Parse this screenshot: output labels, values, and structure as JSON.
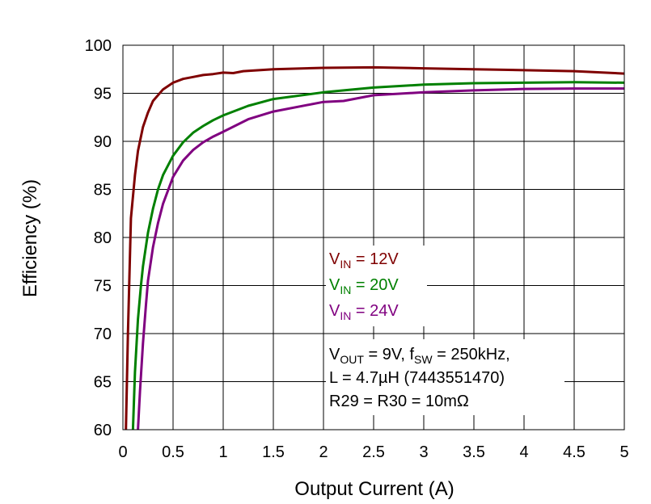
{
  "chart_data": {
    "type": "line",
    "xlabel": "Output Current (A)",
    "ylabel": "Efficiency (%)",
    "xlim": [
      0,
      5
    ],
    "ylim": [
      60,
      100
    ],
    "xticks": [
      "0",
      "0.5",
      "1",
      "1.5",
      "2",
      "2.5",
      "3",
      "3.5",
      "4",
      "4.5",
      "5"
    ],
    "yticks": [
      "60",
      "65",
      "70",
      "75",
      "80",
      "85",
      "90",
      "95",
      "100"
    ],
    "grid": true,
    "legend_position": "center-right",
    "series": [
      {
        "name_main": "V",
        "name_sub": "IN",
        "name_rest": " = 12V",
        "color": "#7f0000",
        "x": [
          0.03,
          0.05,
          0.08,
          0.12,
          0.15,
          0.2,
          0.25,
          0.3,
          0.4,
          0.5,
          0.6,
          0.7,
          0.8,
          0.9,
          1.0,
          1.1,
          1.2,
          1.5,
          2.0,
          2.5,
          3.0,
          3.5,
          4.0,
          4.5,
          5.0
        ],
        "y": [
          60,
          70,
          82,
          86.5,
          89,
          91.5,
          93,
          94.2,
          95.4,
          96.1,
          96.5,
          96.7,
          96.9,
          97.0,
          97.15,
          97.1,
          97.3,
          97.5,
          97.65,
          97.7,
          97.6,
          97.5,
          97.4,
          97.3,
          97.05
        ]
      },
      {
        "name_main": "V",
        "name_sub": "IN",
        "name_rest": " = 20V",
        "color": "#008000",
        "x": [
          0.1,
          0.12,
          0.15,
          0.18,
          0.2,
          0.25,
          0.3,
          0.35,
          0.4,
          0.5,
          0.6,
          0.7,
          0.8,
          0.9,
          1.0,
          1.25,
          1.5,
          2.0,
          2.5,
          3.0,
          3.5,
          4.0,
          4.5,
          5.0
        ],
        "y": [
          60,
          66,
          71.5,
          75,
          77,
          80.5,
          83,
          85,
          86.5,
          88.5,
          89.9,
          90.9,
          91.6,
          92.2,
          92.7,
          93.7,
          94.4,
          95.1,
          95.6,
          95.9,
          96.05,
          96.1,
          96.15,
          96.1
        ]
      },
      {
        "name_main": "V",
        "name_sub": "IN",
        "name_rest": " = 24V",
        "color": "#800080",
        "x": [
          0.15,
          0.17,
          0.2,
          0.23,
          0.25,
          0.3,
          0.35,
          0.4,
          0.5,
          0.6,
          0.7,
          0.8,
          0.9,
          1.0,
          1.25,
          1.5,
          2.0,
          2.2,
          2.3,
          2.5,
          3.0,
          3.5,
          4.0,
          4.5,
          5.0
        ],
        "y": [
          60,
          64,
          69,
          73,
          75.5,
          79,
          81.5,
          83.5,
          86.3,
          88,
          89.1,
          89.9,
          90.5,
          91.0,
          92.3,
          93.1,
          94.1,
          94.2,
          94.4,
          94.8,
          95.1,
          95.3,
          95.45,
          95.5,
          95.5
        ]
      }
    ],
    "annotation": {
      "line1_main": "V",
      "line1_sub": "OUT",
      "line1_mid": " = 9V, f",
      "line1_sub2": "SW",
      "line1_end": " = 250kHz,",
      "line2": "L = 4.7µH (7443551470)",
      "line3": "R29 = R30 = 10mΩ"
    }
  }
}
